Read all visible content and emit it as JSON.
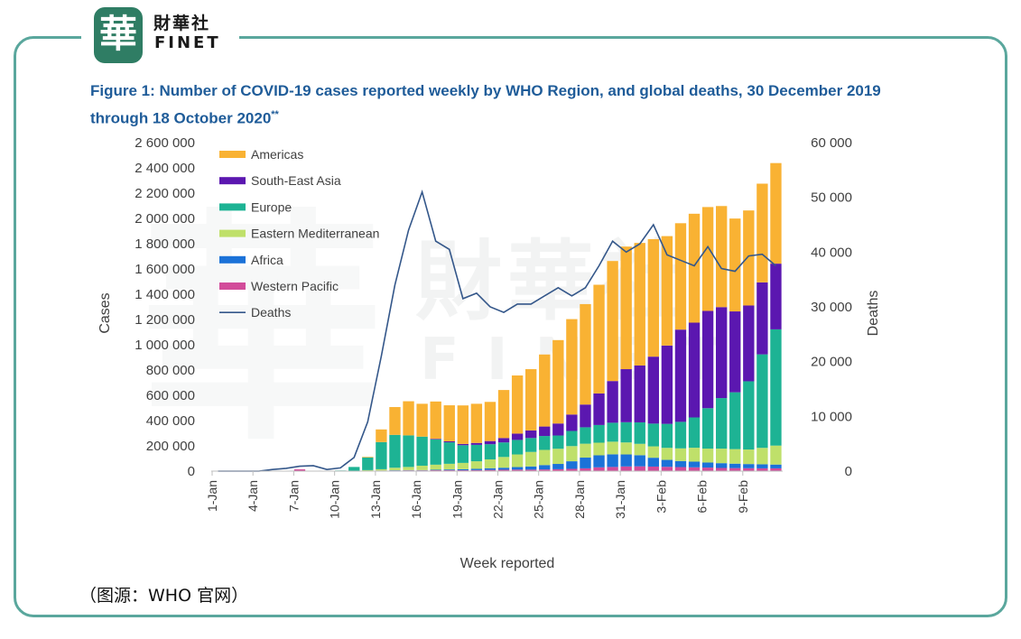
{
  "brand": {
    "seal_text": "華",
    "name_cn": "財華社",
    "name_en": "FINET"
  },
  "figure": {
    "title": "Figure 1: Number of COVID-19 cases reported weekly by WHO Region, and global deaths, 30 December 2019 through 18 October 2020",
    "title_marker": "**"
  },
  "source_note": "（图源：WHO 官网）",
  "watermark": {
    "cn": "財華社",
    "en": "FINET"
  },
  "colors": {
    "Americas": "#f9b233",
    "South-East Asia": "#5b17b0",
    "Europe": "#1db394",
    "Eastern Mediterranean": "#bfe06a",
    "Africa": "#1b72d8",
    "Western Pacific": "#d24b9a",
    "Deaths": "#34578a",
    "frame": "#5aa79d",
    "title": "#1f5c99"
  },
  "chart_data": {
    "type": "bar",
    "stacked": true,
    "xlabel": "Week reported",
    "ylabel": "Cases",
    "y2label": "Deaths",
    "ylim": [
      0,
      2600000
    ],
    "y2lim": [
      0,
      60000
    ],
    "yticks": [
      "0",
      "200 000",
      "400 000",
      "600 000",
      "800 000",
      "1 000 000",
      "1 200 000",
      "1 400 000",
      "1 600 000",
      "1 800 000",
      "2 000 000",
      "2 200 000",
      "2 400 000",
      "2 600 000"
    ],
    "y2ticks": [
      "0",
      "10 000",
      "20 000",
      "30 000",
      "40 000",
      "50 000",
      "60 000"
    ],
    "xticks": [
      {
        "label": "1-Jan",
        "week": 1
      },
      {
        "label": "4-Jan",
        "week": 4
      },
      {
        "label": "7-Jan",
        "week": 7
      },
      {
        "label": "10-Jan",
        "week": 10
      },
      {
        "label": "13-Jan",
        "week": 13
      },
      {
        "label": "16-Jan",
        "week": 16
      },
      {
        "label": "19-Jan",
        "week": 19
      },
      {
        "label": "22-Jan",
        "week": 22
      },
      {
        "label": "25-Jan",
        "week": 25
      },
      {
        "label": "28-Jan",
        "week": 28
      },
      {
        "label": "31-Jan",
        "week": 31
      },
      {
        "label": "3-Feb",
        "week": 34
      },
      {
        "label": "6-Feb",
        "week": 37
      },
      {
        "label": "9-Feb",
        "week": 40
      }
    ],
    "weeks": [
      1,
      2,
      3,
      4,
      5,
      6,
      7,
      8,
      9,
      10,
      11,
      12,
      13,
      14,
      15,
      16,
      17,
      18,
      19,
      20,
      21,
      22,
      23,
      24,
      25,
      26,
      27,
      28,
      29,
      30,
      31,
      32,
      33,
      34,
      35,
      36,
      37,
      38,
      39,
      40,
      41,
      42
    ],
    "legend": {
      "placement": "top-left",
      "entries": [
        "Americas",
        "South-East Asia",
        "Europe",
        "Eastern Mediterranean",
        "Africa",
        "Western Pacific",
        "Deaths"
      ]
    },
    "series": [
      {
        "name": "Western Pacific",
        "values": [
          0,
          0,
          0,
          0,
          0,
          0,
          14000,
          0,
          0,
          0,
          0,
          3000,
          4000,
          5000,
          6000,
          6000,
          7000,
          7000,
          7000,
          8000,
          10000,
          11000,
          12000,
          12000,
          13000,
          15000,
          18000,
          22000,
          30000,
          33000,
          37000,
          38000,
          36000,
          34000,
          32000,
          30000,
          28000,
          25000,
          24000,
          23000,
          22000,
          22000
        ]
      },
      {
        "name": "Africa",
        "values": [
          0,
          0,
          0,
          0,
          0,
          0,
          0,
          0,
          0,
          0,
          0,
          0,
          1000,
          2000,
          2000,
          2000,
          4000,
          6000,
          8000,
          10000,
          13000,
          16000,
          20000,
          25000,
          35000,
          42000,
          60000,
          85000,
          95000,
          100000,
          95000,
          88000,
          70000,
          55000,
          48000,
          45000,
          40000,
          38000,
          35000,
          33000,
          32000,
          30000
        ]
      },
      {
        "name": "Eastern Mediterranean",
        "values": [
          0,
          0,
          0,
          0,
          0,
          0,
          0,
          0,
          0,
          0,
          3000,
          5000,
          10000,
          20000,
          25000,
          35000,
          40000,
          45000,
          50000,
          60000,
          70000,
          85000,
          100000,
          115000,
          120000,
          120000,
          120000,
          110000,
          100000,
          100000,
          95000,
          90000,
          90000,
          95000,
          100000,
          110000,
          110000,
          115000,
          115000,
          115000,
          130000,
          150000
        ]
      },
      {
        "name": "Europe",
        "values": [
          0,
          0,
          0,
          0,
          0,
          0,
          0,
          0,
          0,
          5000,
          30000,
          100000,
          215000,
          260000,
          250000,
          230000,
          200000,
          170000,
          140000,
          130000,
          120000,
          115000,
          115000,
          110000,
          110000,
          105000,
          120000,
          130000,
          140000,
          150000,
          160000,
          170000,
          180000,
          190000,
          210000,
          240000,
          320000,
          400000,
          450000,
          540000,
          740000,
          920000
        ]
      },
      {
        "name": "South-East Asia",
        "values": [
          0,
          0,
          0,
          0,
          0,
          0,
          0,
          0,
          0,
          0,
          0,
          0,
          0,
          0,
          0,
          0,
          5000,
          8000,
          10000,
          15000,
          25000,
          35000,
          50000,
          60000,
          75000,
          95000,
          130000,
          180000,
          250000,
          330000,
          420000,
          450000,
          530000,
          620000,
          730000,
          750000,
          770000,
          720000,
          640000,
          600000,
          570000,
          520000
        ]
      },
      {
        "name": "Americas",
        "values": [
          0,
          0,
          0,
          0,
          0,
          0,
          0,
          0,
          0,
          0,
          0,
          5000,
          100000,
          220000,
          270000,
          260000,
          295000,
          285000,
          305000,
          310000,
          310000,
          380000,
          460000,
          485000,
          570000,
          660000,
          755000,
          795000,
          860000,
          950000,
          970000,
          970000,
          930000,
          866000,
          842000,
          862000,
          822000,
          800000,
          735000,
          752000,
          781000,
          796000
        ]
      },
      {
        "name": "Deaths",
        "type": "line",
        "axis": "right",
        "values": [
          0,
          0,
          0,
          0,
          300,
          500,
          900,
          1000,
          300,
          600,
          2500,
          9000,
          21000,
          34000,
          44000,
          51000,
          42000,
          40500,
          31500,
          32500,
          30000,
          29000,
          30500,
          30500,
          32000,
          33500,
          32000,
          33500,
          37500,
          42000,
          40000,
          41500,
          45000,
          39500,
          38500,
          37500,
          41000,
          37000,
          36500,
          39300,
          39600,
          37500
        ]
      }
    ]
  }
}
